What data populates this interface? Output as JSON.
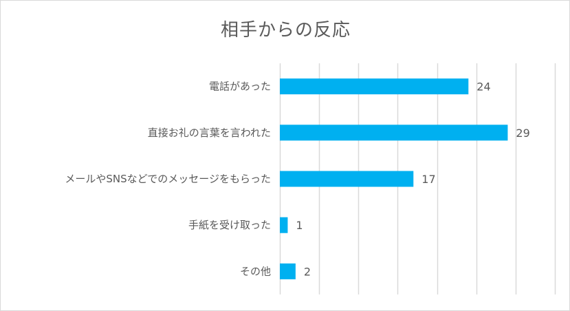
{
  "chart_data": {
    "type": "bar",
    "orientation": "horizontal",
    "title": "相手からの反応",
    "categories": [
      "電話があった",
      "直接お礼の言葉を言われた",
      "メールやSNSなどでのメッセージをもらった",
      "手紙を受け取った",
      "その他"
    ],
    "values": [
      24,
      29,
      17,
      1,
      2
    ],
    "xlim": [
      0,
      35
    ],
    "grid": true,
    "legend": "none",
    "data_labels": true
  },
  "colors": {
    "bar": "#00b0f0",
    "grid": "#d9d9d9",
    "text": "#595959"
  }
}
